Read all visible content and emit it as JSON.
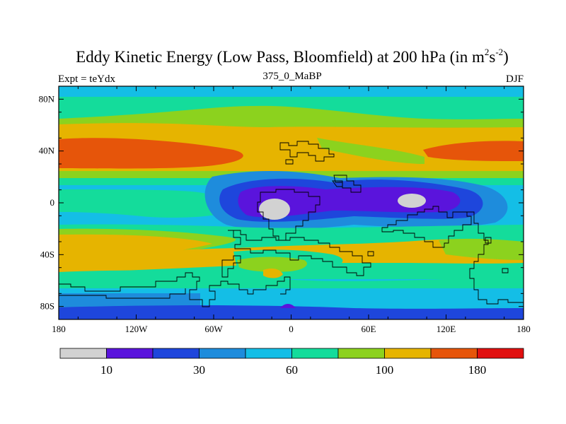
{
  "title_main": "Eddy Kinetic Energy (Low Pass, Bloomfield) at 200 hPa (in m",
  "title_sup1": "2",
  "title_mid": "s",
  "title_sup2": "-2",
  "title_end": ")",
  "left_string": "Expt = teYdx",
  "center_string": "375_0_MaBP",
  "right_string": "DJF",
  "x_ticks": [
    "180",
    "120W",
    "60W",
    "0",
    "60E",
    "120E",
    "180"
  ],
  "y_ticks": [
    "80N",
    "40N",
    "0",
    "40S",
    "80S"
  ],
  "colorbar": {
    "colors": [
      "#d2d2d2",
      "#5a14dc",
      "#1e46dc",
      "#1e8cdc",
      "#14bee6",
      "#14dc9b",
      "#8cd21e",
      "#e6b400",
      "#e6550a",
      "#e10f0f"
    ],
    "labels": [
      "10",
      "30",
      "60",
      "100",
      "180"
    ]
  }
}
